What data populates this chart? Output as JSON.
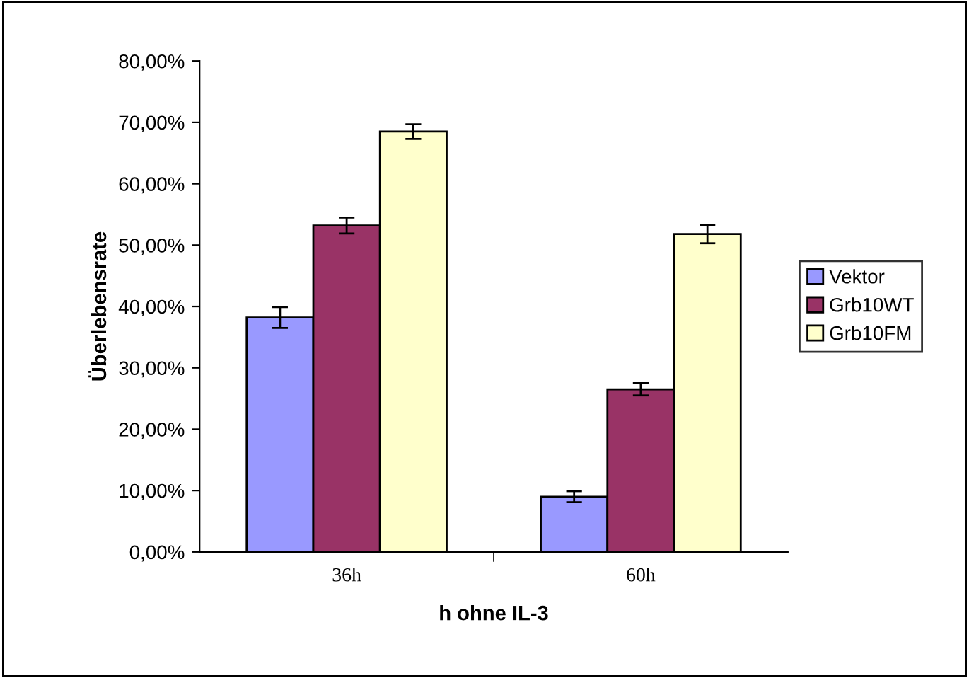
{
  "chart_data": {
    "type": "bar",
    "xlabel": "h ohne IL-3",
    "ylabel": "Überlebensrate",
    "categories": [
      "36h",
      "60h"
    ],
    "series": [
      {
        "name": "Vektor",
        "color": "#9999ff",
        "values": [
          38.2,
          9.0
        ],
        "errors": [
          1.7,
          0.9
        ]
      },
      {
        "name": "Grb10WT",
        "color": "#993366",
        "values": [
          53.2,
          26.5
        ],
        "errors": [
          1.3,
          1.0
        ]
      },
      {
        "name": "Grb10FM",
        "color": "#ffffcc",
        "values": [
          68.5,
          51.8
        ],
        "errors": [
          1.2,
          1.5
        ]
      }
    ],
    "ylim": [
      0,
      80
    ],
    "yticks": [
      {
        "value": 0,
        "label": "0,00%"
      },
      {
        "value": 10,
        "label": "10,00%"
      },
      {
        "value": 20,
        "label": "20,00%"
      },
      {
        "value": 30,
        "label": "30,00%"
      },
      {
        "value": 40,
        "label": "40,00%"
      },
      {
        "value": 50,
        "label": "50,00%"
      },
      {
        "value": 60,
        "label": "60,00%"
      },
      {
        "value": 70,
        "label": "70,00%"
      },
      {
        "value": 80,
        "label": "80,00%"
      }
    ],
    "grid": false,
    "legend": "right"
  }
}
